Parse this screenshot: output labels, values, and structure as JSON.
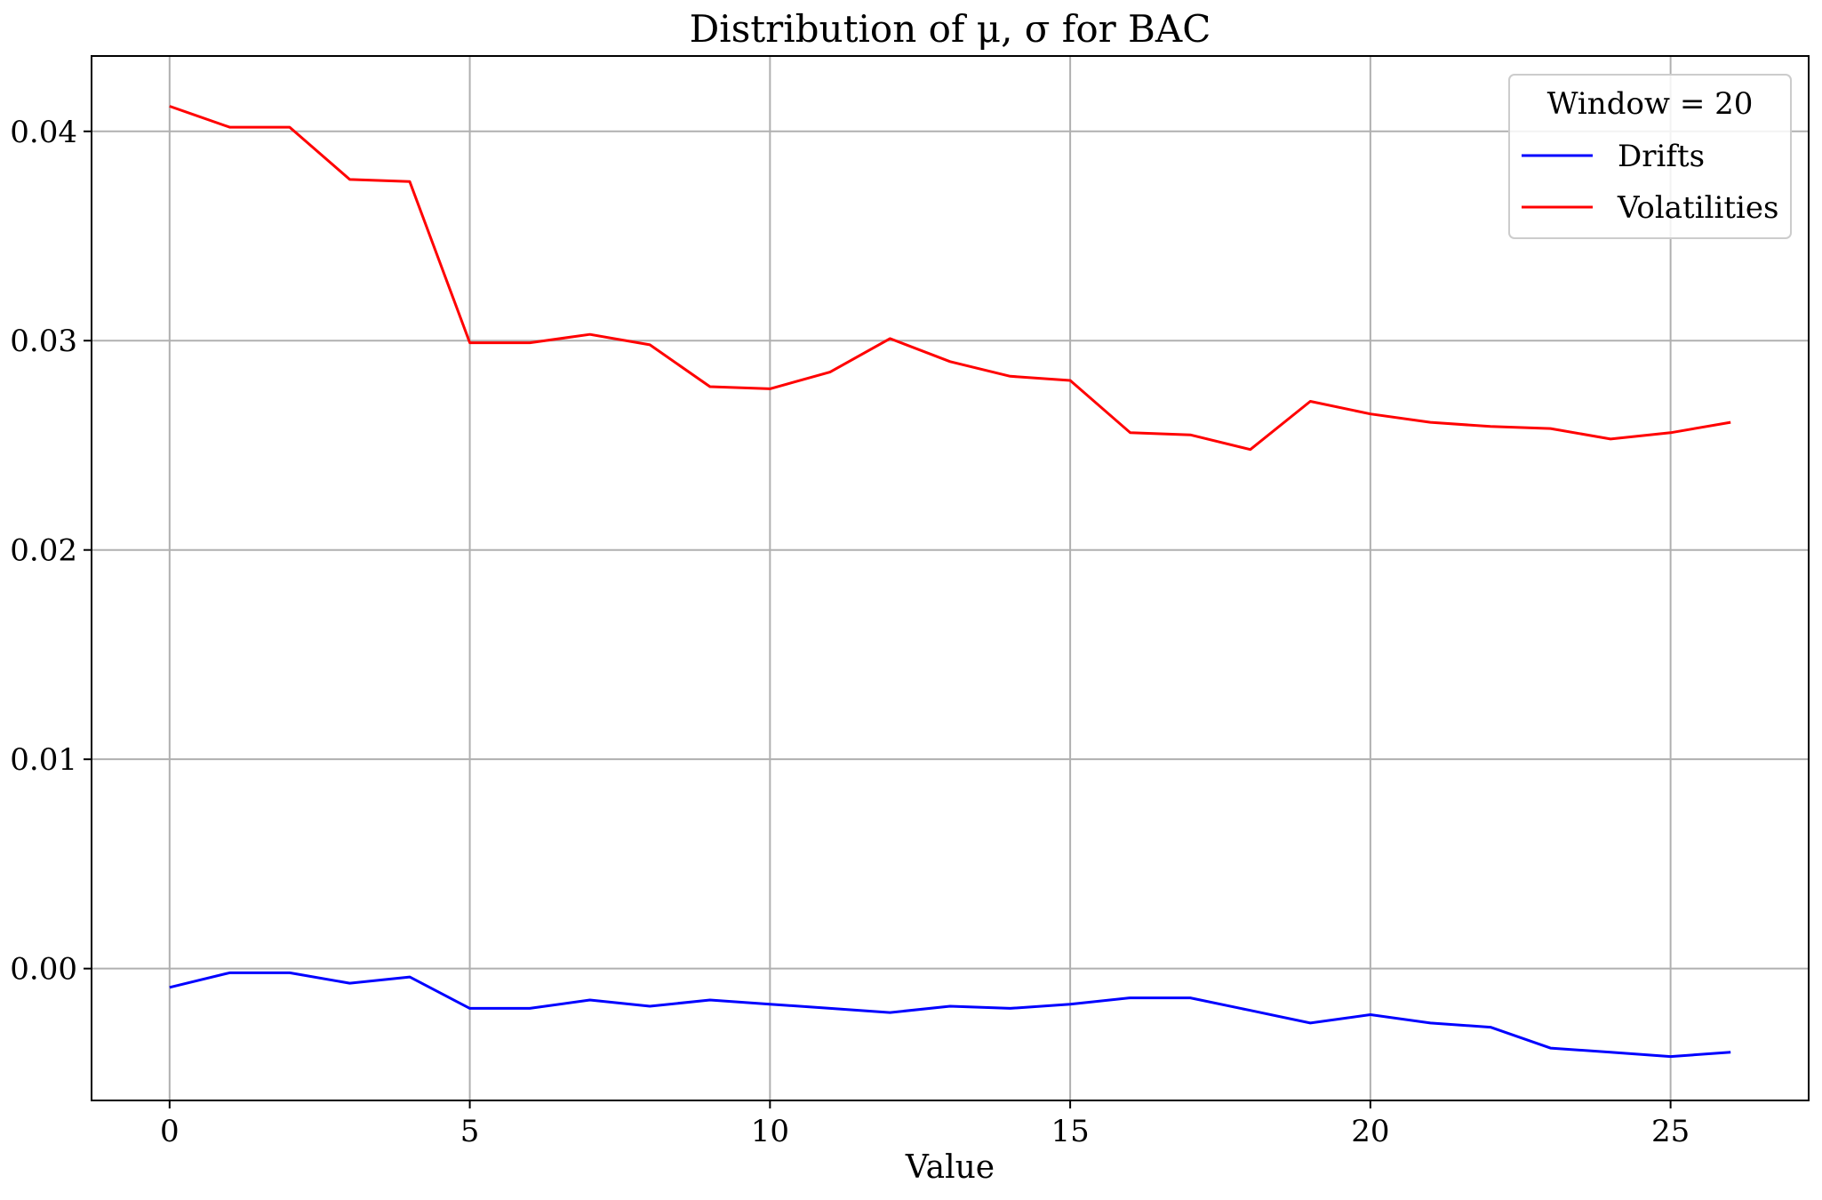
{
  "chart_data": {
    "type": "line",
    "title": "Distribution of μ, σ for BAC",
    "xlabel": "Value",
    "ylabel": "",
    "xlim": [
      -1.3,
      27.3
    ],
    "ylim": [
      -0.0063,
      0.0436
    ],
    "xticks": [
      0,
      5,
      10,
      15,
      20,
      25
    ],
    "yticks": [
      0.0,
      0.01,
      0.02,
      0.03,
      0.04
    ],
    "ytick_labels": [
      "0.00",
      "0.01",
      "0.02",
      "0.03",
      "0.04"
    ],
    "grid": true,
    "legend": {
      "title": "Window = 20",
      "placement": "top-right"
    },
    "x": [
      0,
      1,
      2,
      3,
      4,
      5,
      6,
      7,
      8,
      9,
      10,
      11,
      12,
      13,
      14,
      15,
      16,
      17,
      18,
      19,
      20,
      21,
      22,
      23,
      24,
      25,
      26
    ],
    "series": [
      {
        "name": "Drifts",
        "color": "#0000ff",
        "values": [
          -0.0009,
          -0.0002,
          -0.0002,
          -0.0007,
          -0.0004,
          -0.0019,
          -0.0019,
          -0.0015,
          -0.0018,
          -0.0015,
          -0.0017,
          -0.0019,
          -0.0021,
          -0.0018,
          -0.0019,
          -0.0017,
          -0.0014,
          -0.0014,
          -0.002,
          -0.0026,
          -0.0022,
          -0.0026,
          -0.0028,
          -0.0038,
          -0.004,
          -0.0042,
          -0.004
        ]
      },
      {
        "name": "Volatilities",
        "color": "#ff0000",
        "values": [
          0.0412,
          0.0402,
          0.0402,
          0.0377,
          0.0376,
          0.0299,
          0.0299,
          0.0303,
          0.0298,
          0.0278,
          0.0277,
          0.0285,
          0.0301,
          0.029,
          0.0283,
          0.0281,
          0.0256,
          0.0255,
          0.0248,
          0.0271,
          0.0265,
          0.0261,
          0.0259,
          0.0258,
          0.0253,
          0.0256,
          0.0261
        ]
      }
    ]
  }
}
